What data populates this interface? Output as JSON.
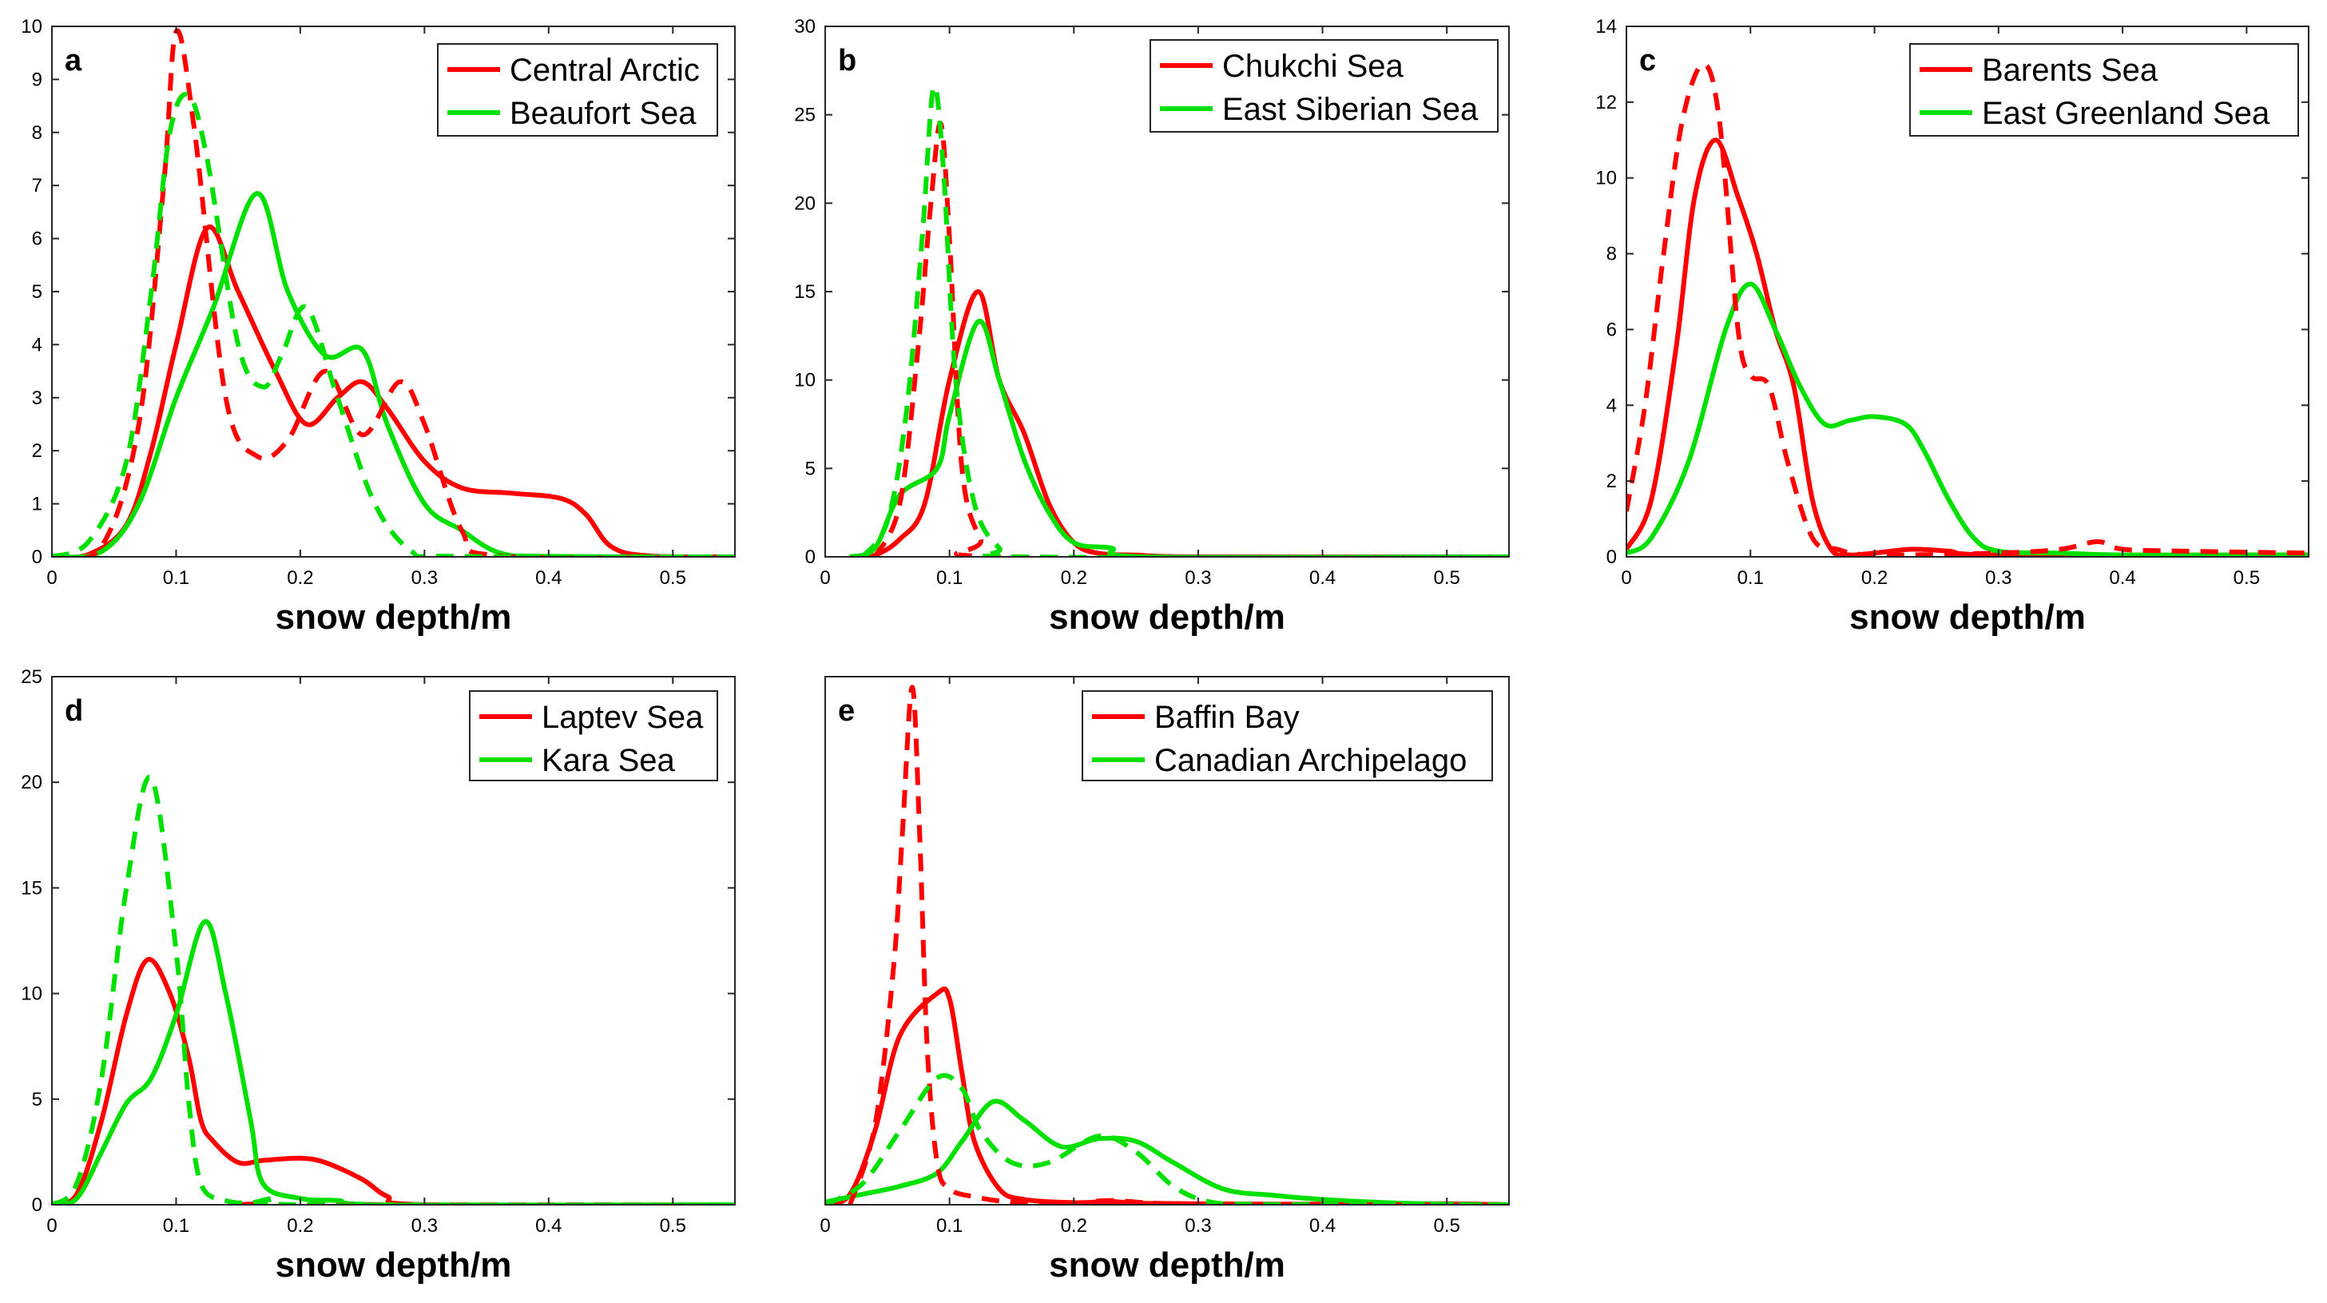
{
  "chart_data": [
    {
      "type": "line",
      "panel": "a",
      "xlabel": "snow depth/m",
      "ylabel": "",
      "xlim": [
        0,
        0.55
      ],
      "ylim": [
        0,
        10
      ],
      "xticks": [
        "0",
        "0.1",
        "0.2",
        "0.3",
        "0.4",
        "0.5"
      ],
      "yticks": [
        "0",
        "1",
        "2",
        "3",
        "4",
        "5",
        "6",
        "7",
        "8",
        "9",
        "10"
      ],
      "legend_position": "top-right",
      "legend": [
        "Central Arctic",
        "Beaufort Sea"
      ],
      "series": [
        {
          "name": "Central Arctic",
          "color": "#ff0000",
          "style": "solid",
          "x": [
            0,
            0.03,
            0.06,
            0.08,
            0.1,
            0.125,
            0.15,
            0.18,
            0.205,
            0.23,
            0.25,
            0.27,
            0.3,
            0.33,
            0.37,
            0.41,
            0.43,
            0.45,
            0.48,
            0.55
          ],
          "y": [
            0,
            0.05,
            0.6,
            2.0,
            4.0,
            6.2,
            5.0,
            3.5,
            2.5,
            3.0,
            3.3,
            2.8,
            1.8,
            1.3,
            1.2,
            1.1,
            0.8,
            0.2,
            0.02,
            0
          ]
        },
        {
          "name": "Beaufort Sea",
          "color": "#00e000",
          "style": "solid",
          "x": [
            0,
            0.04,
            0.07,
            0.1,
            0.13,
            0.165,
            0.19,
            0.22,
            0.25,
            0.27,
            0.3,
            0.33,
            0.36,
            0.4,
            0.55
          ],
          "y": [
            0,
            0.1,
            1.0,
            3.0,
            4.7,
            6.85,
            5.0,
            3.8,
            3.9,
            2.5,
            1.0,
            0.5,
            0.08,
            0.01,
            0
          ]
        },
        {
          "name": "Central Arctic",
          "color": "#ff0000",
          "style": "dashed",
          "x": [
            0,
            0.04,
            0.07,
            0.09,
            0.1,
            0.115,
            0.14,
            0.165,
            0.19,
            0.22,
            0.25,
            0.28,
            0.3,
            0.33,
            0.36,
            0.55
          ],
          "y": [
            0,
            0.2,
            2.5,
            7.0,
            9.9,
            8.0,
            3.0,
            1.9,
            2.2,
            3.5,
            2.3,
            3.3,
            2.5,
            0.5,
            0.02,
            0
          ]
        },
        {
          "name": "Beaufort Sea",
          "color": "#00e000",
          "style": "dashed",
          "x": [
            0,
            0.03,
            0.06,
            0.08,
            0.095,
            0.11,
            0.125,
            0.15,
            0.17,
            0.185,
            0.205,
            0.23,
            0.26,
            0.29,
            0.32,
            0.55
          ],
          "y": [
            0,
            0.3,
            1.8,
            5.0,
            8.0,
            8.7,
            7.5,
            4.0,
            3.2,
            3.8,
            4.7,
            3.0,
            1.0,
            0.1,
            0.01,
            0
          ]
        }
      ]
    },
    {
      "type": "line",
      "panel": "b",
      "xlabel": "snow depth/m",
      "ylabel": "",
      "xlim": [
        0,
        0.55
      ],
      "ylim": [
        0,
        30
      ],
      "xticks": [
        "0",
        "0.1",
        "0.2",
        "0.3",
        "0.4",
        "0.5"
      ],
      "yticks": [
        "0",
        "5",
        "10",
        "15",
        "20",
        "25",
        "30"
      ],
      "legend_position": "top-right",
      "legend": [
        "Chukchi Sea",
        "East Siberian Sea"
      ],
      "series": [
        {
          "name": "Chukchi Sea",
          "color": "#ff0000",
          "style": "solid",
          "x": [
            0.02,
            0.04,
            0.06,
            0.08,
            0.1,
            0.123,
            0.14,
            0.16,
            0.18,
            0.2,
            0.22,
            0.25,
            0.3,
            0.55
          ],
          "y": [
            0,
            0.1,
            1.0,
            3.0,
            10.0,
            15.0,
            10.0,
            7.0,
            3.0,
            0.8,
            0.2,
            0.1,
            0,
            0
          ]
        },
        {
          "name": "East Siberian Sea",
          "color": "#00e000",
          "style": "solid",
          "x": [
            0.02,
            0.04,
            0.06,
            0.09,
            0.1,
            0.123,
            0.14,
            0.16,
            0.18,
            0.2,
            0.23,
            0.26,
            0.55
          ],
          "y": [
            0,
            0.5,
            3.5,
            5.0,
            8.0,
            13.3,
            10.0,
            5.5,
            2.5,
            0.8,
            0.5,
            0,
            0
          ]
        },
        {
          "name": "Chukchi Sea",
          "color": "#ff0000",
          "style": "dashed",
          "x": [
            0.04,
            0.06,
            0.075,
            0.085,
            0.093,
            0.1,
            0.11,
            0.125,
            0.14,
            0.55
          ],
          "y": [
            0,
            3.0,
            12.0,
            20.0,
            24.5,
            18.0,
            5.0,
            1.0,
            0,
            0
          ]
        },
        {
          "name": "East Siberian Sea",
          "color": "#00e000",
          "style": "dashed",
          "x": [
            0.03,
            0.05,
            0.065,
            0.078,
            0.087,
            0.095,
            0.105,
            0.12,
            0.14,
            0.16,
            0.55
          ],
          "y": [
            0,
            2.0,
            8.0,
            18.0,
            26.5,
            22.0,
            10.0,
            3.0,
            0.5,
            0,
            0
          ]
        }
      ]
    },
    {
      "type": "line",
      "panel": "c",
      "xlabel": "snow depth/m",
      "ylabel": "",
      "xlim": [
        0,
        0.55
      ],
      "ylim": [
        0,
        14
      ],
      "xticks": [
        "0",
        "0.1",
        "0.2",
        "0.3",
        "0.4",
        "0.5"
      ],
      "yticks": [
        "0",
        "2",
        "4",
        "6",
        "8",
        "10",
        "12",
        "14"
      ],
      "legend_position": "top-right",
      "legend": [
        "Barents Sea",
        "East Greenland Sea"
      ],
      "series": [
        {
          "name": "Barents Sea",
          "color": "#ff0000",
          "style": "solid",
          "x": [
            0,
            0.02,
            0.04,
            0.055,
            0.072,
            0.09,
            0.105,
            0.12,
            0.135,
            0.15,
            0.165,
            0.18,
            0.2,
            0.23,
            0.26,
            0.3,
            0.55
          ],
          "y": [
            0.2,
            1.5,
            5.5,
            9.5,
            11.0,
            9.5,
            8.0,
            6.0,
            4.5,
            1.5,
            0.2,
            0.05,
            0.1,
            0.2,
            0.15,
            0.05,
            0.05
          ]
        },
        {
          "name": "East Greenland Sea",
          "color": "#00e000",
          "style": "solid",
          "x": [
            0,
            0.02,
            0.05,
            0.08,
            0.1,
            0.12,
            0.14,
            0.16,
            0.18,
            0.2,
            0.225,
            0.24,
            0.26,
            0.28,
            0.3,
            0.35,
            0.4,
            0.55
          ],
          "y": [
            0.1,
            0.5,
            2.5,
            6.0,
            7.2,
            6.0,
            4.5,
            3.5,
            3.6,
            3.7,
            3.5,
            2.8,
            1.5,
            0.5,
            0.15,
            0.1,
            0.05,
            0.05
          ]
        },
        {
          "name": "Barents Sea",
          "color": "#ff0000",
          "style": "dashed",
          "x": [
            0,
            0.015,
            0.03,
            0.045,
            0.062,
            0.075,
            0.09,
            0.1,
            0.115,
            0.13,
            0.15,
            0.17,
            0.2,
            0.3,
            0.35,
            0.38,
            0.4,
            0.45,
            0.55
          ],
          "y": [
            1.2,
            4.0,
            8.0,
            11.5,
            13.0,
            11.5,
            6.0,
            4.8,
            4.5,
            2.5,
            0.5,
            0.2,
            0.05,
            0.1,
            0.2,
            0.4,
            0.2,
            0.15,
            0.1
          ]
        }
      ]
    },
    {
      "type": "line",
      "panel": "d",
      "xlabel": "snow depth/m",
      "ylabel": "",
      "xlim": [
        0,
        0.55
      ],
      "ylim": [
        0,
        25
      ],
      "xticks": [
        "0",
        "0.1",
        "0.2",
        "0.3",
        "0.4",
        "0.5"
      ],
      "yticks": [
        "0",
        "5",
        "10",
        "15",
        "20",
        "25"
      ],
      "legend_position": "top-right",
      "legend": [
        "Laptev Sea",
        "Kara Sea"
      ],
      "series": [
        {
          "name": "Laptev Sea",
          "color": "#ff0000",
          "style": "solid",
          "x": [
            0,
            0.02,
            0.04,
            0.06,
            0.077,
            0.095,
            0.11,
            0.12,
            0.13,
            0.15,
            0.17,
            0.2,
            0.22,
            0.25,
            0.27,
            0.3,
            0.55
          ],
          "y": [
            0,
            0.5,
            4.0,
            9.0,
            11.6,
            10.0,
            7.0,
            4.0,
            3.0,
            2.0,
            2.1,
            2.2,
            2.0,
            1.2,
            0.4,
            0,
            0
          ]
        },
        {
          "name": "Kara Sea",
          "color": "#00e000",
          "style": "solid",
          "x": [
            0,
            0.02,
            0.04,
            0.06,
            0.08,
            0.1,
            0.123,
            0.14,
            0.16,
            0.17,
            0.2,
            0.23,
            0.27,
            0.55
          ],
          "y": [
            0,
            0.3,
            2.5,
            4.8,
            6.0,
            9.0,
            13.4,
            10.0,
            4.0,
            1.0,
            0.3,
            0.2,
            0,
            0
          ]
        },
        {
          "name": "Laptev Sea",
          "color": "#ff0000",
          "style": "dashed",
          "x": [
            0.15,
            0.17,
            0.2,
            0.55
          ],
          "y": [
            0,
            0.05,
            0,
            0
          ]
        },
        {
          "name": "Kara Sea",
          "color": "#00e000",
          "style": "dashed",
          "x": [
            0,
            0.02,
            0.04,
            0.06,
            0.08,
            0.1,
            0.11,
            0.12,
            0.14,
            0.16,
            0.18,
            0.2,
            0.55
          ],
          "y": [
            0,
            1.0,
            6.0,
            15.0,
            20.2,
            12.0,
            5.0,
            1.0,
            0.2,
            0.1,
            0.3,
            0,
            0
          ]
        }
      ]
    },
    {
      "type": "line",
      "panel": "e",
      "xlabel": "snow depth/m",
      "ylabel": "",
      "xlim": [
        0,
        0.55
      ],
      "ylim": [
        0,
        100
      ],
      "xticks": [
        "0",
        "0.1",
        "0.2",
        "0.3",
        "0.4",
        "0.5"
      ],
      "yticks": [],
      "legend_position": "top-right",
      "legend": [
        "Baffin Bay",
        "Canadian Archipelago"
      ],
      "series": [
        {
          "name": "Baffin Bay",
          "color": "#ff0000",
          "style": "solid",
          "x": [
            0,
            0.02,
            0.04,
            0.06,
            0.09,
            0.1,
            0.11,
            0.12,
            0.14,
            0.16,
            0.2,
            0.23,
            0.25,
            0.3,
            0.4,
            0.5,
            0.55
          ],
          "y": [
            0,
            2.0,
            14.0,
            32.0,
            40.0,
            39.0,
            25.0,
            12.0,
            3.0,
            1.0,
            0.4,
            0.6,
            0.3,
            0.2,
            0.1,
            0.2,
            0
          ]
        },
        {
          "name": "Canadian Archipelago",
          "color": "#00e000",
          "style": "solid",
          "x": [
            0,
            0.03,
            0.06,
            0.09,
            0.11,
            0.135,
            0.16,
            0.19,
            0.22,
            0.25,
            0.28,
            0.32,
            0.36,
            0.4,
            0.45,
            0.5,
            0.55
          ],
          "y": [
            0.5,
            2.0,
            3.5,
            6.0,
            12.0,
            19.5,
            16.0,
            11.0,
            12.5,
            12.0,
            8.0,
            3.0,
            1.8,
            1.0,
            0.4,
            0.1,
            0
          ]
        },
        {
          "name": "Baffin Bay",
          "color": "#ff0000",
          "style": "dashed",
          "x": [
            0.02,
            0.04,
            0.055,
            0.062,
            0.07,
            0.076,
            0.082,
            0.09,
            0.1,
            0.12,
            0.15,
            0.2,
            0.23,
            0.3,
            0.55
          ],
          "y": [
            0,
            15.0,
            45.0,
            70.0,
            98.0,
            70.0,
            30.0,
            8.0,
            3.0,
            1.5,
            0.5,
            0.2,
            0.8,
            0.1,
            0
          ]
        },
        {
          "name": "Canadian Archipelago",
          "color": "#00e000",
          "style": "dashed",
          "x": [
            0,
            0.03,
            0.06,
            0.09,
            0.11,
            0.125,
            0.15,
            0.18,
            0.22,
            0.25,
            0.28,
            0.31,
            0.35,
            0.4,
            0.55
          ],
          "y": [
            0,
            4.0,
            14.0,
            24.0,
            22.0,
            14.0,
            8.0,
            8.0,
            13.0,
            10.0,
            3.5,
            0.5,
            0.1,
            0.05,
            0
          ]
        }
      ]
    }
  ]
}
